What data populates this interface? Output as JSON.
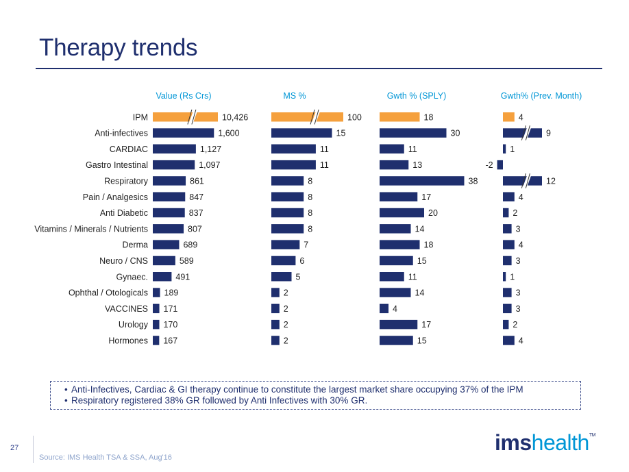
{
  "page": {
    "title": "Therapy trends",
    "page_number": "27",
    "source": "Source: IMS Health TSA & SSA, Aug'16",
    "logo_bold": "ims",
    "logo_light": "health",
    "logo_tm": "TM"
  },
  "notes": [
    "Anti-Infectives, Cardiac & GI therapy continue to constitute the largest market share occupying 37% of the IPM",
    "Respiratory registered 38% GR followed by Anti Infectives with 30% GR."
  ],
  "colors": {
    "highlight": "#f5a03d",
    "bar": "#1f2f6e",
    "header": "#0096d6",
    "text": "#1f1f1f"
  },
  "chart_data": {
    "type": "bar",
    "orientation": "horizontal",
    "categories": [
      "IPM",
      "Anti-infectives",
      "CARDIAC",
      "Gastro Intestinal",
      "Respiratory",
      "Pain / Analgesics",
      "Anti Diabetic",
      "Vitamins / Minerals / Nutrients",
      "Derma",
      "Neuro / CNS",
      "Gynaec.",
      "Ophthal / Otologicals",
      "VACCINES",
      "Urology",
      "Hormones"
    ],
    "highlight_category": "IPM",
    "series": [
      {
        "name": "Value (Rs Crs)",
        "values": [
          10426,
          1600,
          1127,
          1097,
          861,
          847,
          837,
          807,
          689,
          589,
          491,
          189,
          171,
          170,
          167
        ],
        "labels": [
          "10,426",
          "1,600",
          "1,127",
          "1,097",
          "861",
          "847",
          "837",
          "807",
          "689",
          "589",
          "491",
          "189",
          "171",
          "170",
          "167"
        ],
        "break_categories": [
          "IPM"
        ]
      },
      {
        "name": "MS %",
        "values": [
          100,
          15,
          11,
          11,
          8,
          8,
          8,
          8,
          7,
          6,
          5,
          2,
          2,
          2,
          2
        ],
        "labels": [
          "100",
          "15",
          "11",
          "11",
          "8",
          "8",
          "8",
          "8",
          "7",
          "6",
          "5",
          "2",
          "2",
          "2",
          "2"
        ],
        "break_categories": [
          "IPM"
        ]
      },
      {
        "name": "Gwth % (SPLY)",
        "values": [
          18,
          30,
          11,
          13,
          38,
          17,
          20,
          14,
          18,
          15,
          11,
          14,
          4,
          17,
          15
        ],
        "labels": [
          "18",
          "30",
          "11",
          "13",
          "38",
          "17",
          "20",
          "14",
          "18",
          "15",
          "11",
          "14",
          "4",
          "17",
          "15"
        ],
        "break_categories": []
      },
      {
        "name": "Gwth% (Prev. Month)",
        "values": [
          4,
          9,
          1,
          -2,
          12,
          4,
          2,
          3,
          4,
          3,
          1,
          3,
          3,
          2,
          4
        ],
        "labels": [
          "4",
          "9",
          "1",
          "-2",
          "12",
          "4",
          "2",
          "3",
          "4",
          "3",
          "1",
          "3",
          "3",
          "2",
          "4"
        ],
        "break_categories": [
          "Anti-infectives",
          "Respiratory"
        ]
      }
    ]
  }
}
